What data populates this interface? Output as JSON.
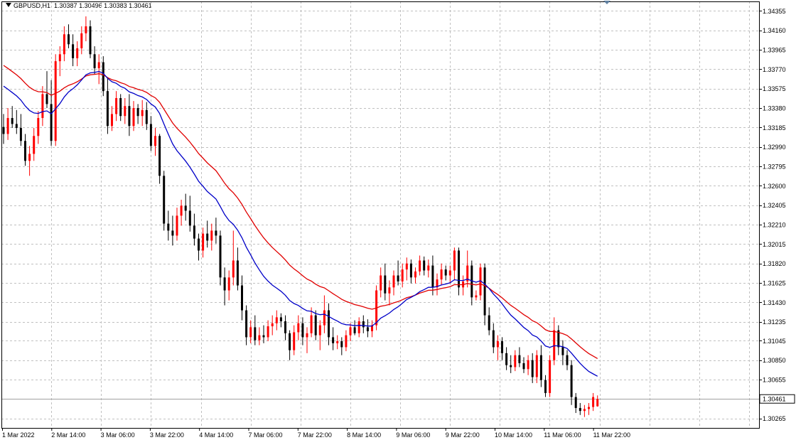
{
  "header": {
    "symbol": "GBPUSD,H1",
    "ohlc": "1.30387 1.30496 1.30383 1.30461"
  },
  "colors": {
    "background": "#ffffff",
    "grid": "#c0c0c0",
    "bull_candle": "#ff0000",
    "bear_candle": "#000000",
    "ma_fast": "#0000c8",
    "ma_slow": "#e00000",
    "price_line": "#a0a0a0"
  },
  "chart_data": {
    "type": "candlestick",
    "ylim": [
      1.3017,
      1.3445
    ],
    "y_ticks": [
      "1.34355",
      "1.34160",
      "1.33965",
      "1.33770",
      "1.33575",
      "1.33380",
      "1.33185",
      "1.32990",
      "1.32795",
      "1.32600",
      "1.32405",
      "1.32210",
      "1.32015",
      "1.31820",
      "1.31625",
      "1.31430",
      "1.31235",
      "1.31045",
      "1.30850",
      "1.30655",
      "1.30265"
    ],
    "x_ticks": [
      "1 Mar 2022",
      "2 Mar 14:00",
      "3 Mar 06:00",
      "3 Mar 22:00",
      "4 Mar 14:00",
      "7 Mar 06:00",
      "7 Mar 22:00",
      "8 Mar 14:00",
      "9 Mar 06:00",
      "9 Mar 22:00",
      "10 Mar 14:00",
      "11 Mar 06:00",
      "11 Mar 22:00"
    ],
    "current_price": "1.30461",
    "grid": true,
    "candles": [
      {
        "o": 1.3319,
        "h": 1.3332,
        "l": 1.3302,
        "c": 1.3312
      },
      {
        "o": 1.3312,
        "h": 1.3338,
        "l": 1.3306,
        "c": 1.3328
      },
      {
        "o": 1.3328,
        "h": 1.334,
        "l": 1.3318,
        "c": 1.3322
      },
      {
        "o": 1.3322,
        "h": 1.3336,
        "l": 1.3312,
        "c": 1.3318
      },
      {
        "o": 1.3318,
        "h": 1.3332,
        "l": 1.33,
        "c": 1.3305
      },
      {
        "o": 1.3305,
        "h": 1.3312,
        "l": 1.328,
        "c": 1.3285
      },
      {
        "o": 1.3285,
        "h": 1.33,
        "l": 1.327,
        "c": 1.3292
      },
      {
        "o": 1.3292,
        "h": 1.3318,
        "l": 1.3285,
        "c": 1.331
      },
      {
        "o": 1.331,
        "h": 1.3335,
        "l": 1.3302,
        "c": 1.3328
      },
      {
        "o": 1.3328,
        "h": 1.336,
        "l": 1.332,
        "c": 1.3352
      },
      {
        "o": 1.3352,
        "h": 1.3375,
        "l": 1.3338,
        "c": 1.3342
      },
      {
        "o": 1.3342,
        "h": 1.3366,
        "l": 1.33,
        "c": 1.3305
      },
      {
        "o": 1.3305,
        "h": 1.3392,
        "l": 1.33,
        "c": 1.3385
      },
      {
        "o": 1.3385,
        "h": 1.34,
        "l": 1.337,
        "c": 1.3392
      },
      {
        "o": 1.3392,
        "h": 1.342,
        "l": 1.3385,
        "c": 1.3412
      },
      {
        "o": 1.3412,
        "h": 1.3422,
        "l": 1.3398,
        "c": 1.3402
      },
      {
        "o": 1.3402,
        "h": 1.3412,
        "l": 1.338,
        "c": 1.3388
      },
      {
        "o": 1.3388,
        "h": 1.3405,
        "l": 1.338,
        "c": 1.3398
      },
      {
        "o": 1.3398,
        "h": 1.342,
        "l": 1.3392,
        "c": 1.3413
      },
      {
        "o": 1.3413,
        "h": 1.343,
        "l": 1.3405,
        "c": 1.342
      },
      {
        "o": 1.342,
        "h": 1.3426,
        "l": 1.3388,
        "c": 1.3392
      },
      {
        "o": 1.3392,
        "h": 1.34,
        "l": 1.3372,
        "c": 1.3378
      },
      {
        "o": 1.3378,
        "h": 1.3392,
        "l": 1.3362,
        "c": 1.3384
      },
      {
        "o": 1.3384,
        "h": 1.339,
        "l": 1.335,
        "c": 1.3355
      },
      {
        "o": 1.3355,
        "h": 1.3368,
        "l": 1.3312,
        "c": 1.332
      },
      {
        "o": 1.332,
        "h": 1.334,
        "l": 1.3315,
        "c": 1.3332
      },
      {
        "o": 1.3332,
        "h": 1.3355,
        "l": 1.3325,
        "c": 1.3348
      },
      {
        "o": 1.3348,
        "h": 1.3352,
        "l": 1.3325,
        "c": 1.333
      },
      {
        "o": 1.333,
        "h": 1.3348,
        "l": 1.3322,
        "c": 1.334
      },
      {
        "o": 1.334,
        "h": 1.3352,
        "l": 1.331,
        "c": 1.332
      },
      {
        "o": 1.332,
        "h": 1.3345,
        "l": 1.3315,
        "c": 1.3338
      },
      {
        "o": 1.3338,
        "h": 1.3342,
        "l": 1.3322,
        "c": 1.333
      },
      {
        "o": 1.333,
        "h": 1.3346,
        "l": 1.332,
        "c": 1.3336
      },
      {
        "o": 1.3336,
        "h": 1.3344,
        "l": 1.3316,
        "c": 1.3322
      },
      {
        "o": 1.3322,
        "h": 1.333,
        "l": 1.3295,
        "c": 1.33
      },
      {
        "o": 1.33,
        "h": 1.3318,
        "l": 1.329,
        "c": 1.331
      },
      {
        "o": 1.331,
        "h": 1.3312,
        "l": 1.3262,
        "c": 1.327
      },
      {
        "o": 1.327,
        "h": 1.3275,
        "l": 1.3215,
        "c": 1.3222
      },
      {
        "o": 1.3222,
        "h": 1.3235,
        "l": 1.3205,
        "c": 1.3215
      },
      {
        "o": 1.3215,
        "h": 1.323,
        "l": 1.32,
        "c": 1.321
      },
      {
        "o": 1.321,
        "h": 1.3238,
        "l": 1.3205,
        "c": 1.323
      },
      {
        "o": 1.323,
        "h": 1.3246,
        "l": 1.322,
        "c": 1.324
      },
      {
        "o": 1.324,
        "h": 1.3252,
        "l": 1.3225,
        "c": 1.3235
      },
      {
        "o": 1.3235,
        "h": 1.325,
        "l": 1.3214,
        "c": 1.322
      },
      {
        "o": 1.322,
        "h": 1.3232,
        "l": 1.32,
        "c": 1.3207
      },
      {
        "o": 1.3207,
        "h": 1.3212,
        "l": 1.3185,
        "c": 1.3195
      },
      {
        "o": 1.3195,
        "h": 1.3218,
        "l": 1.3188,
        "c": 1.3212
      },
      {
        "o": 1.3212,
        "h": 1.3225,
        "l": 1.3198,
        "c": 1.3205
      },
      {
        "o": 1.3205,
        "h": 1.3222,
        "l": 1.3195,
        "c": 1.3215
      },
      {
        "o": 1.3215,
        "h": 1.3228,
        "l": 1.3202,
        "c": 1.321
      },
      {
        "o": 1.321,
        "h": 1.3215,
        "l": 1.316,
        "c": 1.3168
      },
      {
        "o": 1.3168,
        "h": 1.3178,
        "l": 1.314,
        "c": 1.3155
      },
      {
        "o": 1.3155,
        "h": 1.3175,
        "l": 1.3145,
        "c": 1.3168
      },
      {
        "o": 1.3168,
        "h": 1.3215,
        "l": 1.316,
        "c": 1.3185
      },
      {
        "o": 1.3185,
        "h": 1.3198,
        "l": 1.3155,
        "c": 1.316
      },
      {
        "o": 1.316,
        "h": 1.317,
        "l": 1.3125,
        "c": 1.3135
      },
      {
        "o": 1.3135,
        "h": 1.314,
        "l": 1.31,
        "c": 1.3108
      },
      {
        "o": 1.3108,
        "h": 1.3125,
        "l": 1.3102,
        "c": 1.3118
      },
      {
        "o": 1.3118,
        "h": 1.313,
        "l": 1.31,
        "c": 1.3105
      },
      {
        "o": 1.3105,
        "h": 1.3118,
        "l": 1.31,
        "c": 1.311
      },
      {
        "o": 1.311,
        "h": 1.312,
        "l": 1.3102,
        "c": 1.3108
      },
      {
        "o": 1.3108,
        "h": 1.3125,
        "l": 1.3104,
        "c": 1.3119
      },
      {
        "o": 1.3119,
        "h": 1.313,
        "l": 1.311,
        "c": 1.3122
      },
      {
        "o": 1.3122,
        "h": 1.3135,
        "l": 1.3115,
        "c": 1.3128
      },
      {
        "o": 1.3128,
        "h": 1.3132,
        "l": 1.3118,
        "c": 1.3124
      },
      {
        "o": 1.3124,
        "h": 1.313,
        "l": 1.3105,
        "c": 1.3112
      },
      {
        "o": 1.3112,
        "h": 1.3115,
        "l": 1.3085,
        "c": 1.3095
      },
      {
        "o": 1.3095,
        "h": 1.312,
        "l": 1.309,
        "c": 1.3113
      },
      {
        "o": 1.3113,
        "h": 1.313,
        "l": 1.3105,
        "c": 1.3122
      },
      {
        "o": 1.3122,
        "h": 1.3128,
        "l": 1.31,
        "c": 1.3108
      },
      {
        "o": 1.3108,
        "h": 1.3118,
        "l": 1.3092,
        "c": 1.3112
      },
      {
        "o": 1.3112,
        "h": 1.3138,
        "l": 1.3108,
        "c": 1.313
      },
      {
        "o": 1.313,
        "h": 1.3135,
        "l": 1.3105,
        "c": 1.311
      },
      {
        "o": 1.311,
        "h": 1.3125,
        "l": 1.3095,
        "c": 1.312
      },
      {
        "o": 1.312,
        "h": 1.315,
        "l": 1.3112,
        "c": 1.3135
      },
      {
        "o": 1.3135,
        "h": 1.3142,
        "l": 1.31,
        "c": 1.3108
      },
      {
        "o": 1.3108,
        "h": 1.3118,
        "l": 1.3095,
        "c": 1.3102
      },
      {
        "o": 1.3102,
        "h": 1.311,
        "l": 1.3096,
        "c": 1.3104
      },
      {
        "o": 1.3104,
        "h": 1.3108,
        "l": 1.309,
        "c": 1.3098
      },
      {
        "o": 1.3098,
        "h": 1.3115,
        "l": 1.3094,
        "c": 1.311
      },
      {
        "o": 1.311,
        "h": 1.3122,
        "l": 1.3104,
        "c": 1.3118
      },
      {
        "o": 1.3118,
        "h": 1.3125,
        "l": 1.311,
        "c": 1.3112
      },
      {
        "o": 1.3112,
        "h": 1.3128,
        "l": 1.3108,
        "c": 1.3124
      },
      {
        "o": 1.3124,
        "h": 1.313,
        "l": 1.3112,
        "c": 1.3118
      },
      {
        "o": 1.3118,
        "h": 1.3126,
        "l": 1.3108,
        "c": 1.3114
      },
      {
        "o": 1.3114,
        "h": 1.3125,
        "l": 1.3108,
        "c": 1.312
      },
      {
        "o": 1.312,
        "h": 1.316,
        "l": 1.3115,
        "c": 1.3155
      },
      {
        "o": 1.3155,
        "h": 1.3178,
        "l": 1.3148,
        "c": 1.317
      },
      {
        "o": 1.317,
        "h": 1.3182,
        "l": 1.3145,
        "c": 1.3152
      },
      {
        "o": 1.3152,
        "h": 1.3165,
        "l": 1.314,
        "c": 1.3158
      },
      {
        "o": 1.3158,
        "h": 1.3175,
        "l": 1.315,
        "c": 1.317
      },
      {
        "o": 1.317,
        "h": 1.3185,
        "l": 1.316,
        "c": 1.3164
      },
      {
        "o": 1.3164,
        "h": 1.3182,
        "l": 1.3158,
        "c": 1.3176
      },
      {
        "o": 1.3176,
        "h": 1.3188,
        "l": 1.3165,
        "c": 1.3182
      },
      {
        "o": 1.3182,
        "h": 1.3186,
        "l": 1.3162,
        "c": 1.3168
      },
      {
        "o": 1.3168,
        "h": 1.3178,
        "l": 1.3162,
        "c": 1.3174
      },
      {
        "o": 1.3174,
        "h": 1.319,
        "l": 1.317,
        "c": 1.3185
      },
      {
        "o": 1.3185,
        "h": 1.3189,
        "l": 1.317,
        "c": 1.3175
      },
      {
        "o": 1.3175,
        "h": 1.3186,
        "l": 1.3168,
        "c": 1.318
      },
      {
        "o": 1.318,
        "h": 1.319,
        "l": 1.315,
        "c": 1.3158
      },
      {
        "o": 1.3158,
        "h": 1.3172,
        "l": 1.315,
        "c": 1.3166
      },
      {
        "o": 1.3166,
        "h": 1.3182,
        "l": 1.316,
        "c": 1.3176
      },
      {
        "o": 1.3176,
        "h": 1.318,
        "l": 1.3165,
        "c": 1.317
      },
      {
        "o": 1.317,
        "h": 1.318,
        "l": 1.3162,
        "c": 1.3175
      },
      {
        "o": 1.3175,
        "h": 1.3198,
        "l": 1.3165,
        "c": 1.3195
      },
      {
        "o": 1.3195,
        "h": 1.3198,
        "l": 1.315,
        "c": 1.3158
      },
      {
        "o": 1.3158,
        "h": 1.317,
        "l": 1.315,
        "c": 1.3164
      },
      {
        "o": 1.3164,
        "h": 1.3195,
        "l": 1.3158,
        "c": 1.318
      },
      {
        "o": 1.318,
        "h": 1.3185,
        "l": 1.314,
        "c": 1.3148
      },
      {
        "o": 1.3148,
        "h": 1.3155,
        "l": 1.3145,
        "c": 1.315
      },
      {
        "o": 1.315,
        "h": 1.3182,
        "l": 1.3145,
        "c": 1.3178
      },
      {
        "o": 1.3178,
        "h": 1.3182,
        "l": 1.312,
        "c": 1.313
      },
      {
        "o": 1.313,
        "h": 1.3138,
        "l": 1.311,
        "c": 1.3115
      },
      {
        "o": 1.3115,
        "h": 1.3122,
        "l": 1.3092,
        "c": 1.3098
      },
      {
        "o": 1.3098,
        "h": 1.311,
        "l": 1.3085,
        "c": 1.3104
      },
      {
        "o": 1.3104,
        "h": 1.3108,
        "l": 1.3085,
        "c": 1.3092
      },
      {
        "o": 1.3092,
        "h": 1.3098,
        "l": 1.3075,
        "c": 1.308
      },
      {
        "o": 1.308,
        "h": 1.309,
        "l": 1.3072,
        "c": 1.3078
      },
      {
        "o": 1.3078,
        "h": 1.3095,
        "l": 1.3074,
        "c": 1.309
      },
      {
        "o": 1.309,
        "h": 1.3098,
        "l": 1.3078,
        "c": 1.3082
      },
      {
        "o": 1.3082,
        "h": 1.3088,
        "l": 1.3072,
        "c": 1.3076
      },
      {
        "o": 1.3076,
        "h": 1.309,
        "l": 1.307,
        "c": 1.3085
      },
      {
        "o": 1.3085,
        "h": 1.3092,
        "l": 1.3062,
        "c": 1.3068
      },
      {
        "o": 1.3068,
        "h": 1.3095,
        "l": 1.3062,
        "c": 1.309
      },
      {
        "o": 1.309,
        "h": 1.31,
        "l": 1.3058,
        "c": 1.3065
      },
      {
        "o": 1.3065,
        "h": 1.307,
        "l": 1.3048,
        "c": 1.3052
      },
      {
        "o": 1.3052,
        "h": 1.309,
        "l": 1.3048,
        "c": 1.3085
      },
      {
        "o": 1.3085,
        "h": 1.3128,
        "l": 1.308,
        "c": 1.3115
      },
      {
        "o": 1.3115,
        "h": 1.312,
        "l": 1.309,
        "c": 1.3098
      },
      {
        "o": 1.3098,
        "h": 1.3105,
        "l": 1.308,
        "c": 1.309
      },
      {
        "o": 1.309,
        "h": 1.3095,
        "l": 1.3075,
        "c": 1.308
      },
      {
        "o": 1.308,
        "h": 1.3085,
        "l": 1.304,
        "c": 1.3048
      },
      {
        "o": 1.3048,
        "h": 1.3052,
        "l": 1.3032,
        "c": 1.3037
      },
      {
        "o": 1.3037,
        "h": 1.3042,
        "l": 1.303,
        "c": 1.3034
      },
      {
        "o": 1.3034,
        "h": 1.304,
        "l": 1.3028,
        "c": 1.3036
      },
      {
        "o": 1.3036,
        "h": 1.3042,
        "l": 1.303,
        "c": 1.3038
      },
      {
        "o": 1.3038,
        "h": 1.3052,
        "l": 1.3034,
        "c": 1.3048
      },
      {
        "o": 1.30387,
        "h": 1.30496,
        "l": 1.30383,
        "c": 1.30461
      }
    ]
  }
}
